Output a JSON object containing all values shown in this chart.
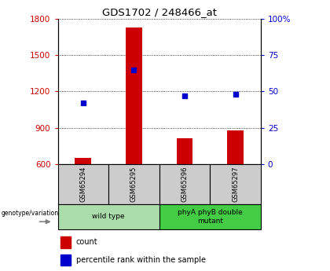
{
  "title": "GDS1702 / 248466_at",
  "samples": [
    "GSM65294",
    "GSM65295",
    "GSM65296",
    "GSM65297"
  ],
  "counts": [
    648,
    1730,
    810,
    880
  ],
  "percentile_ranks": [
    42,
    65,
    47,
    48
  ],
  "ylim_left": [
    600,
    1800
  ],
  "ylim_right": [
    0,
    100
  ],
  "yticks_left": [
    600,
    900,
    1200,
    1500,
    1800
  ],
  "yticks_right": [
    0,
    25,
    50,
    75,
    100
  ],
  "bar_color": "#cc0000",
  "dot_color": "#0000cc",
  "groups": [
    {
      "label": "wild type",
      "samples": [
        0,
        1
      ],
      "color": "#aaddaa"
    },
    {
      "label": "phyA phyB double\nmutant",
      "samples": [
        2,
        3
      ],
      "color": "#44cc44"
    }
  ],
  "legend_count_label": "count",
  "legend_pct_label": "percentile rank within the sample",
  "genotype_label": "genotype/variation",
  "bar_width": 0.32,
  "sample_box_color": "#cccccc",
  "left_ylabel_color": "#cc0000",
  "right_ylabel_color": "#0000cc"
}
